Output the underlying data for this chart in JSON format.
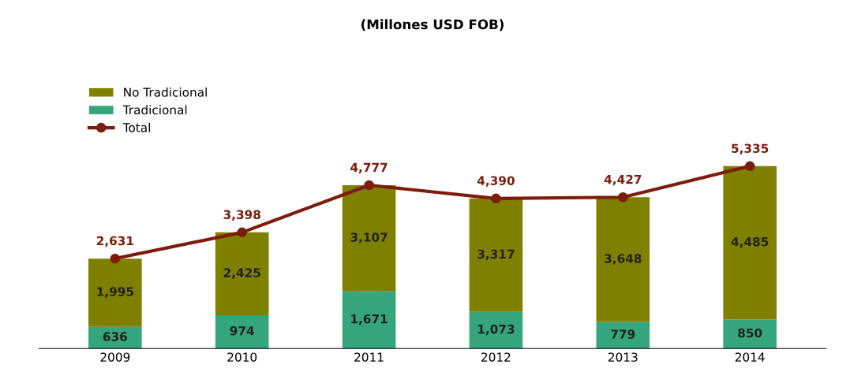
{
  "chart_data": {
    "type": "bar",
    "title": "(Millones USD FOB)",
    "categories": [
      "2009",
      "2010",
      "2011",
      "2012",
      "2013",
      "2014"
    ],
    "stacked": true,
    "legend": "top left",
    "grid": false,
    "tick_labels": "x",
    "series": [
      {
        "name": "Tradicional",
        "color": "#34a57c",
        "values": [
          636,
          974,
          1671,
          1073,
          779,
          850
        ],
        "value_labels": [
          "636",
          "974",
          "1,671",
          "1,073",
          "779",
          "850"
        ]
      },
      {
        "name": "No Tradicional",
        "color": "#7f7f00",
        "values": [
          1995,
          2425,
          3107,
          3317,
          3648,
          4485
        ],
        "value_labels": [
          "1,995",
          "2,425",
          "3,107",
          "3,317",
          "3,648",
          "4,485"
        ]
      },
      {
        "name": "Total",
        "type": "line",
        "color": "#7b1c0c",
        "marker": "circle",
        "values": [
          2631,
          3398,
          4777,
          4390,
          4427,
          5335
        ],
        "value_labels": [
          "2,631",
          "3,398",
          "4,777",
          "4,390",
          "4,427",
          "5,335"
        ]
      }
    ]
  }
}
